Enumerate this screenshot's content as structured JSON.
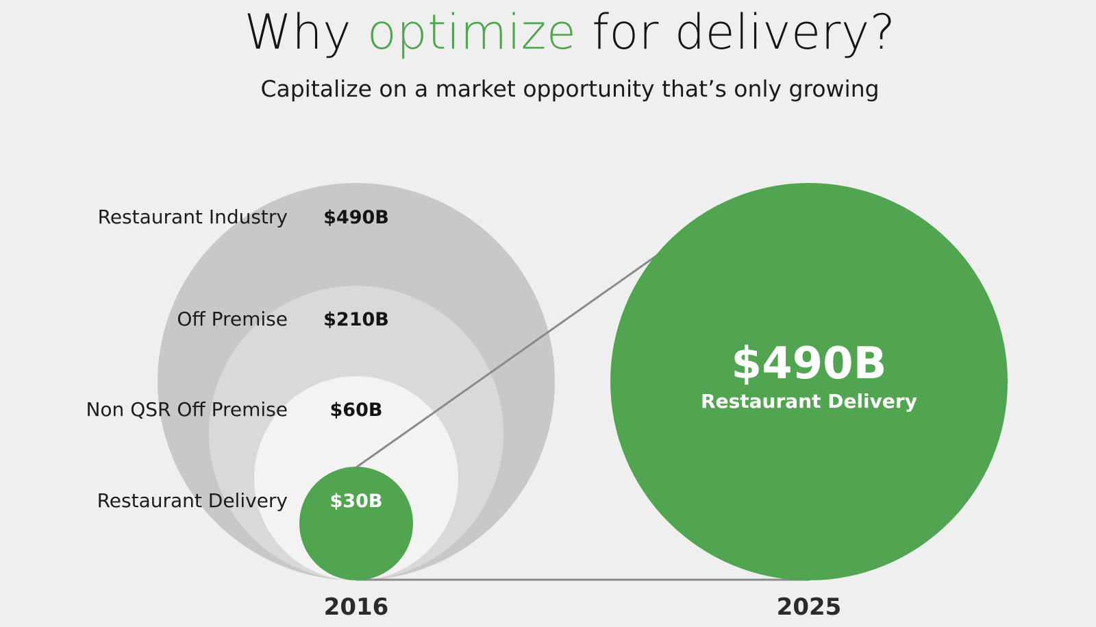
{
  "title": {
    "before": "Why ",
    "accent": "optimize",
    "after": " for delivery?"
  },
  "subtitle": "Capitalize on a market opportunity that’s only growing",
  "colors": {
    "accent": "#52a550",
    "delivery": "#52a550",
    "industry": "#c8c8cb",
    "off_premise": "#d9d9d9",
    "non_qsr": "#f3f3f3",
    "connector": "#8a8a8a"
  },
  "chart_data": {
    "type": "nested-bubble",
    "groups": [
      {
        "year": "2016",
        "segments": [
          {
            "label": "Restaurant Industry",
            "value_label": "$490B",
            "value": 490
          },
          {
            "label": "Off Premise",
            "value_label": "$210B",
            "value": 210
          },
          {
            "label": "Non QSR Off Premise",
            "value_label": "$60B",
            "value": 60
          },
          {
            "label": "Restaurant Delivery",
            "value_label": "$30B",
            "value": 30
          }
        ]
      },
      {
        "year": "2025",
        "segments": [
          {
            "label": "Restaurant Delivery",
            "value_label": "$490B",
            "value": 490
          }
        ]
      }
    ]
  }
}
